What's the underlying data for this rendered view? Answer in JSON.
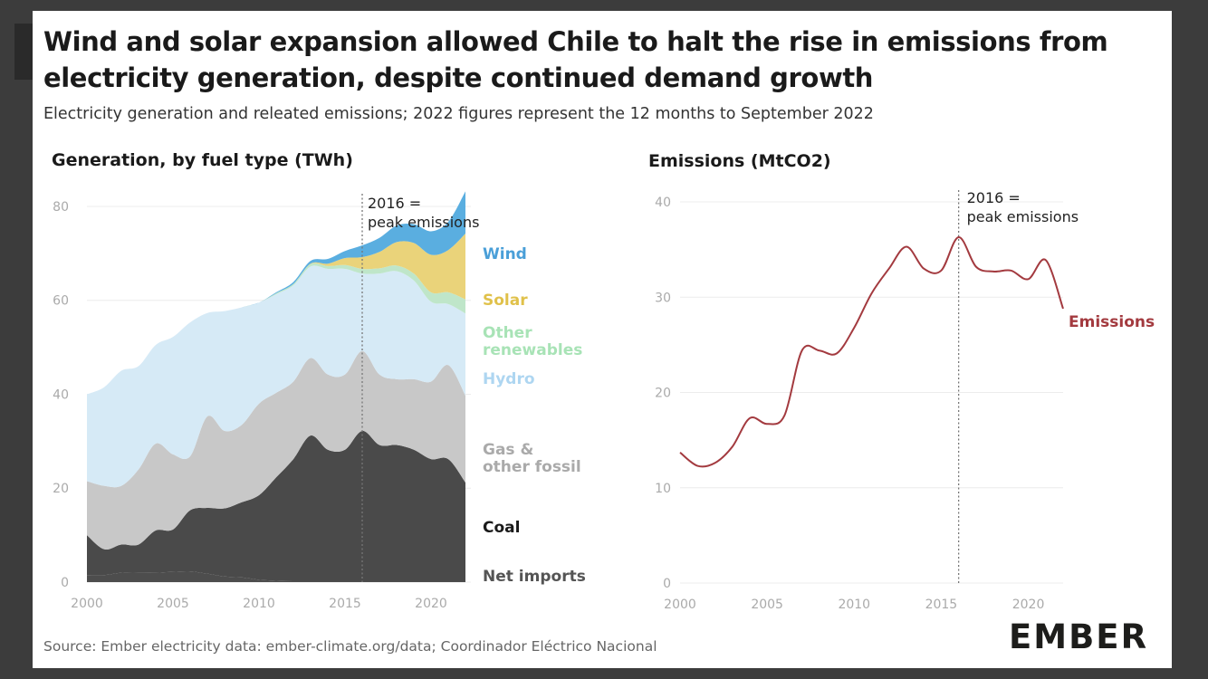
{
  "header": {
    "title": "Wind and solar expansion allowed Chile to halt the rise in emissions from electricity generation, despite continued demand growth",
    "subtitle": "Electricity generation and releated emissions; 2022 figures represent the 12 months to September 2022"
  },
  "footer": {
    "source": "Source: Ember electricity data: ember-climate.org/data; Coordinador Eléctrico Nacional",
    "logo": "EMBER"
  },
  "colors": {
    "net_imports": "#4d4d4d",
    "coal": "#4a4a4a",
    "gas_other_fossil": "#c8c8c8",
    "hydro": "#d6eaf6",
    "other_renewables": "#bfe6c9",
    "solar": "#ead37a",
    "wind": "#5aaee0",
    "emissions": "#a33a3f"
  },
  "chart_data": [
    {
      "type": "area",
      "title": "Generation, by fuel type (TWh)",
      "x": [
        2000,
        2001,
        2002,
        2003,
        2004,
        2005,
        2006,
        2007,
        2008,
        2009,
        2010,
        2011,
        2012,
        2013,
        2014,
        2015,
        2016,
        2017,
        2018,
        2019,
        2020,
        2021,
        2022
      ],
      "series": [
        {
          "name": "Net imports",
          "label": "Net imports",
          "key": "net_imports",
          "values": [
            1.5,
            1.5,
            2,
            2,
            2,
            2.2,
            2.3,
            1.8,
            1.2,
            1,
            0.5,
            0.3,
            0.2,
            0.2,
            0.2,
            0.2,
            0.2,
            0.2,
            0.2,
            0.2,
            0.2,
            0.2,
            0.2
          ]
        },
        {
          "name": "Coal",
          "label": "Coal",
          "key": "coal",
          "values": [
            8.5,
            5.5,
            6,
            6,
            9,
            9,
            13,
            14,
            14.5,
            16,
            18,
            22,
            26,
            31,
            28,
            28,
            32,
            29,
            29,
            28,
            26,
            26,
            21
          ]
        },
        {
          "name": "Gas & other fossil",
          "label": "Gas &\nother fossil",
          "key": "gas_other_fossil",
          "values": [
            11.5,
            13.5,
            12.5,
            16,
            18.5,
            16,
            11.5,
            19.5,
            16.5,
            16.5,
            19.5,
            18,
            16.5,
            16.5,
            16,
            16,
            17,
            15,
            14,
            15,
            16.5,
            20,
            18.5
          ]
        },
        {
          "name": "Hydro",
          "label": "Hydro",
          "key": "hydro",
          "values": [
            18.5,
            21,
            24.5,
            22,
            21,
            25,
            28.5,
            22,
            25.5,
            25,
            21.5,
            21,
            20.5,
            19.5,
            22.5,
            22.5,
            16.5,
            21.5,
            23,
            21,
            17,
            13,
            17.5
          ]
        },
        {
          "name": "Other renewables",
          "label": "Other\nrenewables",
          "key": "other_renewables",
          "values": [
            0,
            0,
            0,
            0,
            0,
            0,
            0,
            0,
            0,
            0,
            0,
            0.2,
            0.3,
            0.5,
            0.6,
            0.8,
            1,
            1.1,
            1.2,
            1.5,
            2,
            2.5,
            3
          ]
        },
        {
          "name": "Solar",
          "label": "Solar",
          "key": "solar",
          "values": [
            0,
            0,
            0,
            0,
            0,
            0,
            0,
            0,
            0,
            0,
            0,
            0,
            0,
            0.1,
            0.5,
            1.5,
            2.5,
            3.5,
            5,
            6.5,
            8,
            9,
            14
          ]
        },
        {
          "name": "Wind",
          "label": "Wind",
          "key": "wind",
          "values": [
            0,
            0,
            0,
            0,
            0,
            0,
            0,
            0,
            0,
            0,
            0,
            0.2,
            0.4,
            0.6,
            1,
            1.5,
            2.5,
            3,
            3.5,
            4,
            5,
            6,
            9
          ]
        }
      ],
      "ylim": [
        0,
        85
      ],
      "y_ticks": [
        0,
        20,
        40,
        60,
        80
      ],
      "x_ticks": [
        2000,
        2005,
        2010,
        2015,
        2020
      ],
      "annotation": {
        "x": 2016,
        "text": [
          "2016 =",
          "peak emissions"
        ]
      },
      "grid": true
    },
    {
      "type": "line",
      "title": "Emissions (MtCO2)",
      "x": [
        2000,
        2001,
        2002,
        2003,
        2004,
        2005,
        2006,
        2007,
        2008,
        2009,
        2010,
        2011,
        2012,
        2013,
        2014,
        2015,
        2016,
        2017,
        2018,
        2019,
        2020,
        2021,
        2022
      ],
      "series": [
        {
          "name": "Emissions",
          "values": [
            13.7,
            12.3,
            12.6,
            14.3,
            17.3,
            16.7,
            17.6,
            24.4,
            24.4,
            24.1,
            26.8,
            30.4,
            33,
            35.3,
            33,
            32.8,
            36.3,
            33.2,
            32.7,
            32.8,
            31.9,
            33.9,
            28.8
          ]
        }
      ],
      "ylim": [
        0,
        42
      ],
      "y_ticks": [
        0,
        10,
        20,
        30,
        40
      ],
      "x_ticks": [
        2000,
        2005,
        2010,
        2015,
        2020
      ],
      "annotation": {
        "x": 2016,
        "text": [
          "2016 =",
          "peak emissions"
        ]
      },
      "grid": true
    }
  ]
}
